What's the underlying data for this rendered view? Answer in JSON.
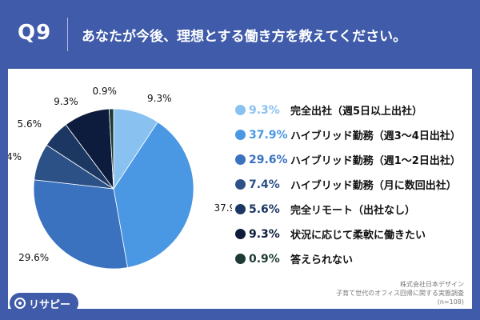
{
  "header": {
    "qnum": "Q9",
    "question": "あなたが今後、理想とする働き方を教えてください。"
  },
  "chart_data": {
    "type": "pie",
    "slices": [
      {
        "label": "完全出社（週5日以上出社）",
        "value": 9.3,
        "display": "9.3%",
        "color": "#89c1f1"
      },
      {
        "label": "ハイブリッド勤務（週3〜4日出社）",
        "value": 37.9,
        "display": "37.9%",
        "color": "#4a97e3"
      },
      {
        "label": "ハイブリッド勤務（週1〜2日出社）",
        "value": 29.6,
        "display": "29.6%",
        "color": "#3a72c0"
      },
      {
        "label": "ハイブリッド勤務（月に数回出社）",
        "value": 7.4,
        "display": "7.4%",
        "color": "#2b5187"
      },
      {
        "label": "完全リモート（出社なし）",
        "value": 5.6,
        "display": "5.6%",
        "color": "#1c3862"
      },
      {
        "label": "状況に応じて柔軟に働きたい",
        "value": 9.3,
        "display": "9.3%",
        "color": "#0d1b3c"
      },
      {
        "label": "答えられない",
        "value": 0.9,
        "display": "0.9%",
        "color": "#1e3a34"
      }
    ]
  },
  "source": {
    "line1": "株式会社日本デザイン",
    "line2": "子育て世代のオフィス回帰に関する実態調査",
    "line3": "(n=108)"
  },
  "brand": {
    "name": "リサピー"
  }
}
